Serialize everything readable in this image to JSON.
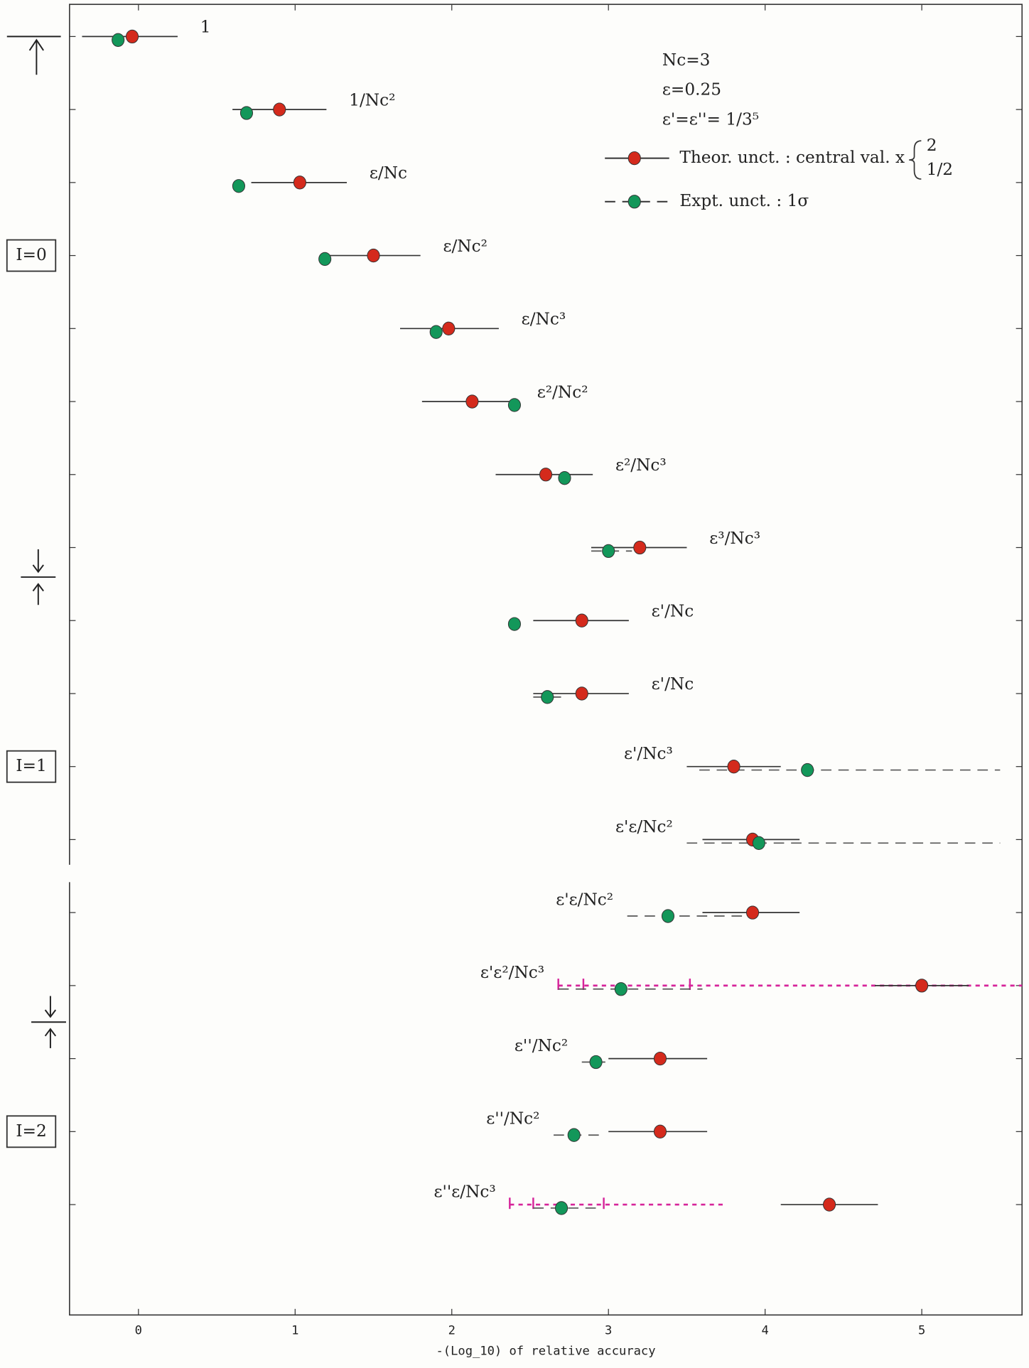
{
  "chart_data": {
    "type": "interval",
    "xlabel": "-(Log_10) of relative accuracy",
    "xlim": [
      -0.44,
      5.64
    ],
    "xticks": [
      0,
      1,
      2,
      3,
      4,
      5
    ],
    "categories": [
      "1",
      "1/Nc²",
      "ε/Nc",
      "ε/Nc²",
      "ε/Nc³",
      "ε²/Nc²",
      "ε²/Nc³",
      "ε³/Nc³",
      "ε'/Nc",
      "ε'/Nc",
      "ε'/Nc³",
      "ε'ε/Nc²",
      "ε'ε/Nc²",
      "ε'ε²/Nc³",
      "ε''/Nc²",
      "ε''/Nc²",
      "ε''ε/Nc³"
    ],
    "groups": [
      {
        "label": "I=0",
        "row": 3
      },
      {
        "label": "I=1",
        "row": 10
      },
      {
        "label": "I=2",
        "row": 15
      }
    ],
    "params": [
      "Nc=3",
      "ε=0.25",
      "ε'=ε''= 1/3⁵"
    ],
    "theory_factors": [
      "2",
      "1/2"
    ],
    "series": [
      {
        "name": "Theor. unct. : central val. x",
        "color": "#d42a1c",
        "style": "solid",
        "values": [
          -0.04,
          0.9,
          1.03,
          1.5,
          1.98,
          2.13,
          2.6,
          3.2,
          2.83,
          2.83,
          3.8,
          3.92,
          3.92,
          5.0,
          3.33,
          3.33,
          4.41
        ],
        "lo": [
          -0.36,
          0.6,
          0.72,
          1.18,
          1.67,
          1.81,
          2.28,
          2.89,
          2.52,
          2.52,
          3.5,
          3.6,
          3.6,
          4.7,
          3.0,
          3.0,
          4.1
        ],
        "hi": [
          0.25,
          1.2,
          1.33,
          1.8,
          2.3,
          2.4,
          2.9,
          3.5,
          3.13,
          3.13,
          4.1,
          4.22,
          4.22,
          5.3,
          3.63,
          3.63,
          4.72
        ]
      },
      {
        "name": "Expt. unct. : 1σ",
        "color": "#13975a",
        "style": "dashed",
        "values": [
          -0.13,
          0.69,
          0.64,
          1.19,
          1.9,
          2.4,
          2.72,
          3.0,
          2.4,
          2.61,
          4.27,
          3.96,
          3.38,
          3.08,
          2.92,
          2.78,
          2.7
        ],
        "lo": [
          null,
          null,
          null,
          null,
          null,
          null,
          null,
          2.89,
          null,
          2.52,
          3.58,
          3.5,
          3.12,
          2.68,
          2.83,
          2.65,
          2.52
        ],
        "hi": [
          null,
          null,
          null,
          null,
          null,
          null,
          null,
          3.15,
          null,
          2.7,
          5.5,
          5.5,
          3.93,
          3.6,
          2.98,
          2.95,
          2.95
        ]
      }
    ],
    "bracket": {
      "color": "#d6249a",
      "lo": [
        null,
        null,
        null,
        null,
        null,
        null,
        null,
        null,
        null,
        null,
        null,
        null,
        null,
        2.68,
        null,
        null,
        2.37
      ],
      "hi": [
        null,
        null,
        null,
        null,
        null,
        null,
        null,
        null,
        null,
        null,
        null,
        null,
        null,
        5.64,
        null,
        null,
        3.73
      ],
      "ticks": [
        null,
        null,
        null,
        null,
        null,
        null,
        null,
        null,
        null,
        null,
        null,
        null,
        null,
        [
          2.68,
          2.84,
          3.52
        ],
        null,
        null,
        [
          2.37,
          2.52,
          2.97
        ]
      ]
    }
  }
}
